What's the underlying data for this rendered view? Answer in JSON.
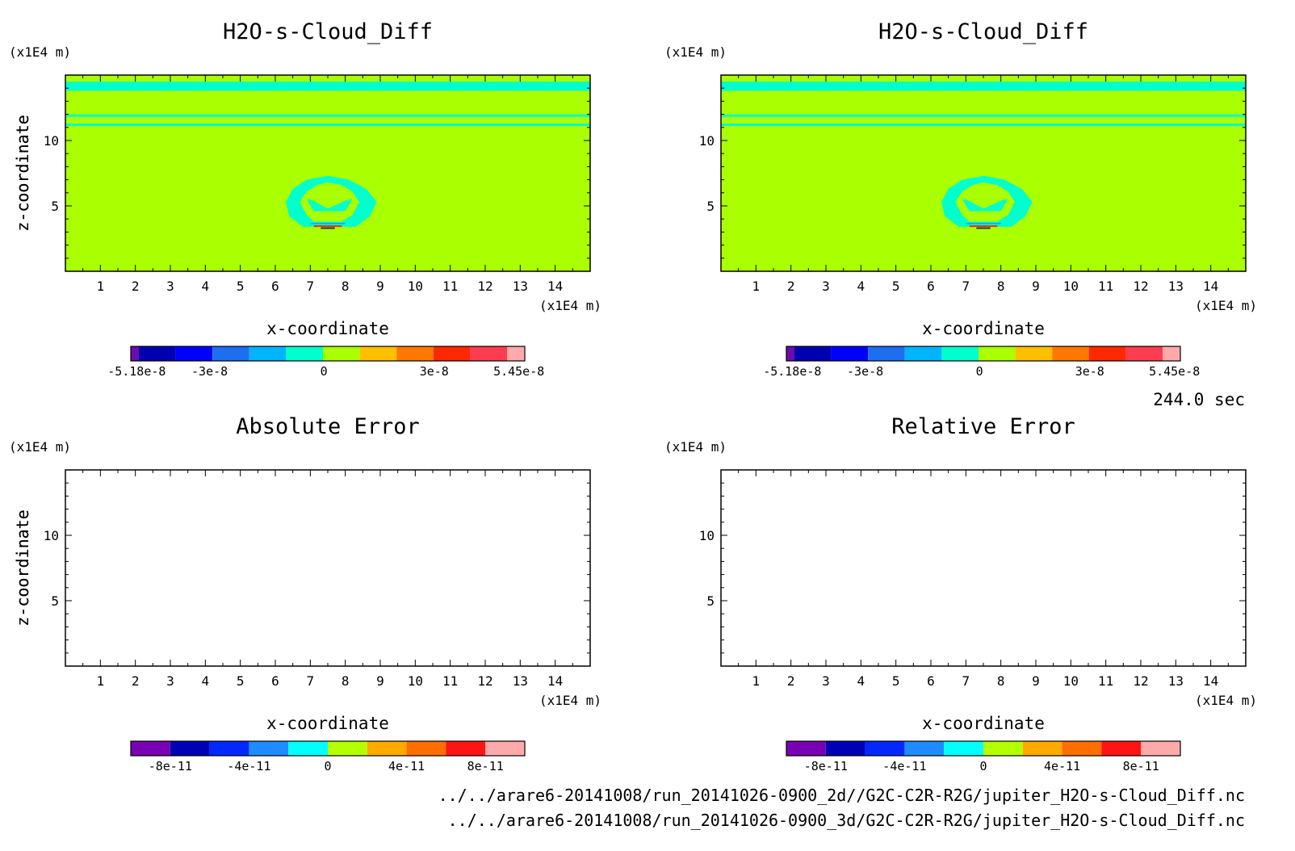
{
  "time_label": "244.0 sec",
  "files": [
    "../../arare6-20141008/run_20141026-0900_2d//G2C-C2R-R2G/jupiter_H2O-s-Cloud_Diff.nc",
    "../../arare6-20141008/run_20141026-0900_3d/G2C-C2R-R2G/jupiter_H2O-s-Cloud_Diff.nc"
  ],
  "chart_data": [
    {
      "id": "top-left",
      "type": "heatmap",
      "title": "H2O-s-Cloud_Diff",
      "xlabel": "x-coordinate",
      "ylabel": "z-coordinate",
      "x_unit": "(x1E4 m)",
      "y_unit": "(x1E4 m)",
      "xlim": [
        0,
        15
      ],
      "ylim": [
        0,
        15
      ],
      "x_ticks": [
        "1",
        "2",
        "3",
        "4",
        "5",
        "6",
        "7",
        "8",
        "9",
        "10",
        "11",
        "12",
        "13",
        "14"
      ],
      "y_ticks": [
        "5",
        "10"
      ],
      "field": "filled",
      "colorbar": {
        "colors": [
          "#6a0dad",
          "#0000b0",
          "#0000ff",
          "#1e6ef0",
          "#00b4ff",
          "#00ffcc",
          "#aaff00",
          "#ffc000",
          "#ff7800",
          "#ff2800",
          "#ff3c50",
          "#ffaaaa"
        ],
        "ticks": [
          "-5.18e-8",
          "-3e-8",
          "0",
          "3e-8",
          "5.45e-8"
        ]
      }
    },
    {
      "id": "top-right",
      "type": "heatmap",
      "title": "H2O-s-Cloud_Diff",
      "xlabel": "x-coordinate",
      "ylabel": "z-coordinate",
      "x_unit": "(x1E4 m)",
      "y_unit": "(x1E4 m)",
      "xlim": [
        0,
        15
      ],
      "ylim": [
        0,
        15
      ],
      "x_ticks": [
        "1",
        "2",
        "3",
        "4",
        "5",
        "6",
        "7",
        "8",
        "9",
        "10",
        "11",
        "12",
        "13",
        "14"
      ],
      "y_ticks": [
        "5",
        "10"
      ],
      "field": "filled",
      "colorbar": {
        "colors": [
          "#6a0dad",
          "#0000b0",
          "#0000ff",
          "#1e6ef0",
          "#00b4ff",
          "#00ffcc",
          "#aaff00",
          "#ffc000",
          "#ff7800",
          "#ff2800",
          "#ff3c50",
          "#ffaaaa"
        ],
        "ticks": [
          "-5.18e-8",
          "-3e-8",
          "0",
          "3e-8",
          "5.45e-8"
        ]
      }
    },
    {
      "id": "bottom-left",
      "type": "heatmap",
      "title": "Absolute Error",
      "xlabel": "x-coordinate",
      "ylabel": "z-coordinate",
      "x_unit": "(x1E4 m)",
      "y_unit": "(x1E4 m)",
      "xlim": [
        0,
        15
      ],
      "ylim": [
        0,
        15
      ],
      "x_ticks": [
        "1",
        "2",
        "3",
        "4",
        "5",
        "6",
        "7",
        "8",
        "9",
        "10",
        "11",
        "12",
        "13",
        "14"
      ],
      "y_ticks": [
        "5",
        "10"
      ],
      "field": "empty",
      "colorbar": {
        "colors": [
          "#7a00b4",
          "#0000b4",
          "#0028ff",
          "#1e8cff",
          "#00ffff",
          "#b4ff00",
          "#ffaa00",
          "#ff6e00",
          "#ff1414",
          "#ffaaaa"
        ],
        "ticks": [
          "-8e-11",
          "-4e-11",
          "0",
          "4e-11",
          "8e-11"
        ]
      }
    },
    {
      "id": "bottom-right",
      "type": "heatmap",
      "title": "Relative Error",
      "xlabel": "x-coordinate",
      "ylabel": "z-coordinate",
      "x_unit": "(x1E4 m)",
      "y_unit": "(x1E4 m)",
      "xlim": [
        0,
        15
      ],
      "ylim": [
        0,
        15
      ],
      "x_ticks": [
        "1",
        "2",
        "3",
        "4",
        "5",
        "6",
        "7",
        "8",
        "9",
        "10",
        "11",
        "12",
        "13",
        "14"
      ],
      "y_ticks": [
        "5",
        "10"
      ],
      "field": "empty",
      "colorbar": {
        "colors": [
          "#7a00b4",
          "#0000b4",
          "#0028ff",
          "#1e8cff",
          "#00ffff",
          "#b4ff00",
          "#ffaa00",
          "#ff6e00",
          "#ff1414",
          "#ffaaaa"
        ],
        "ticks": [
          "-8e-11",
          "-4e-11",
          "0",
          "4e-11",
          "8e-11"
        ]
      }
    }
  ]
}
